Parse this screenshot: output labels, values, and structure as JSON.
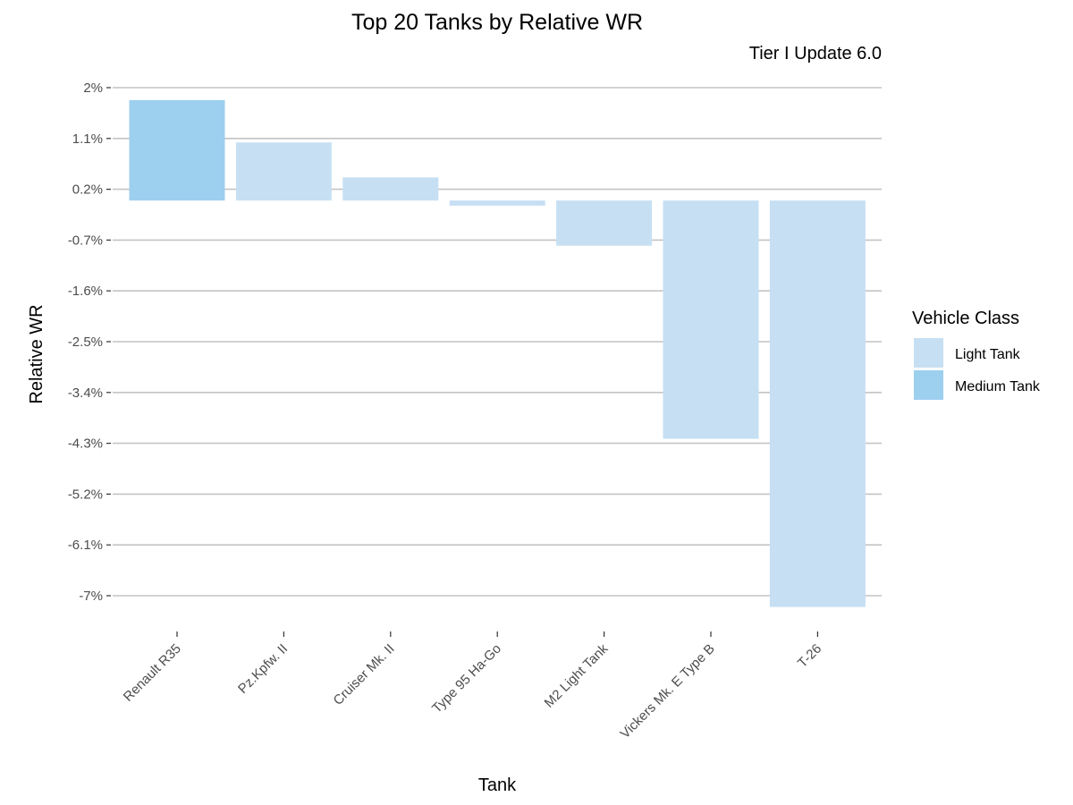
{
  "chart_data": {
    "type": "bar",
    "title": "Top 20 Tanks by Relative WR",
    "subtitle": "Tier I Update 6.0",
    "xlabel": "Tank",
    "ylabel": "Relative WR",
    "categories": [
      "Renault R35",
      "Pz.Kpfw. II",
      "Cruiser Mk. II",
      "Type 95 Ha-Go",
      "M2 Light Tank",
      "Vickers Mk. E Type B",
      "T-26"
    ],
    "values": [
      1.78,
      1.03,
      0.41,
      -0.09,
      -0.8,
      -4.22,
      -7.2
    ],
    "classes": [
      "Medium Tank",
      "Light Tank",
      "Light Tank",
      "Light Tank",
      "Light Tank",
      "Light Tank",
      "Light Tank"
    ],
    "y_ticks": [
      2.0,
      1.1,
      0.2,
      -0.7,
      -1.6,
      -2.5,
      -3.4,
      -4.3,
      -5.2,
      -6.1,
      -7.0
    ],
    "y_tick_labels": [
      "2%",
      "1.1%",
      "0.2%",
      "-0.7%",
      "-1.6%",
      "-2.5%",
      "-3.4%",
      "-4.3%",
      "-5.2%",
      "-6.1%",
      "-7%"
    ],
    "ylim": [
      -7.6,
      2.0
    ],
    "grid": true,
    "legend": {
      "title": "Vehicle Class",
      "placement": "right",
      "entries": [
        {
          "label": "Light Tank",
          "color": "#c6dff3"
        },
        {
          "label": "Medium Tank",
          "color": "#9dcfef"
        }
      ]
    }
  }
}
